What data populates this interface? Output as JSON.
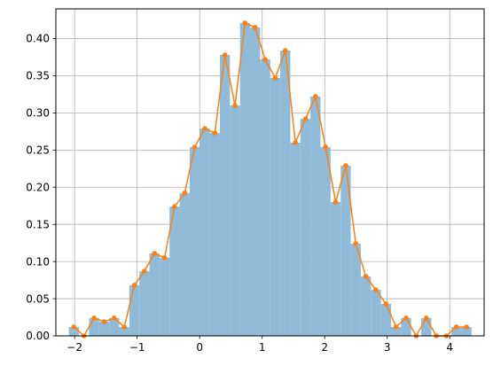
{
  "chart_data": {
    "type": "bar",
    "title": "",
    "xlabel": "",
    "ylabel": "",
    "xlim": [
      -2.3,
      4.55
    ],
    "ylim": [
      0,
      0.44
    ],
    "grid": true,
    "legend": "none",
    "x_ticks": [
      "-2",
      "-1",
      "0",
      "1",
      "2",
      "3",
      "4"
    ],
    "x_tick_values": [
      -2,
      -1,
      0,
      1,
      2,
      3,
      4
    ],
    "y_ticks": [
      "0.00",
      "0.05",
      "0.10",
      "0.15",
      "0.20",
      "0.25",
      "0.30",
      "0.35",
      "0.40"
    ],
    "y_tick_values": [
      0,
      0.05,
      0.1,
      0.15,
      0.2,
      0.25,
      0.3,
      0.35,
      0.4
    ],
    "bin_width": 0.161,
    "x": [
      -2.011,
      -1.85,
      -1.689,
      -1.528,
      -1.367,
      -1.206,
      -1.045,
      -0.884,
      -0.723,
      -0.562,
      -0.401,
      -0.24,
      -0.079,
      0.082,
      0.243,
      0.404,
      0.565,
      0.726,
      0.887,
      1.048,
      1.209,
      1.37,
      1.531,
      1.692,
      1.853,
      2.014,
      2.175,
      2.336,
      2.497,
      2.658,
      2.819,
      2.98,
      3.141,
      3.302,
      3.463,
      3.624,
      3.785,
      3.946,
      4.107,
      4.268
    ],
    "values": [
      0.012,
      0.0,
      0.024,
      0.019,
      0.024,
      0.012,
      0.068,
      0.087,
      0.111,
      0.105,
      0.174,
      0.192,
      0.254,
      0.279,
      0.273,
      0.378,
      0.31,
      0.421,
      0.415,
      0.372,
      0.347,
      0.384,
      0.26,
      0.292,
      0.322,
      0.254,
      0.18,
      0.229,
      0.124,
      0.08,
      0.062,
      0.043,
      0.012,
      0.024,
      0.0,
      0.024,
      0.0,
      0.0,
      0.012,
      0.012
    ],
    "colors": {
      "bars": "#8fbbd9",
      "line": "#ff7f0e",
      "grid": "#b0b0b0"
    }
  }
}
